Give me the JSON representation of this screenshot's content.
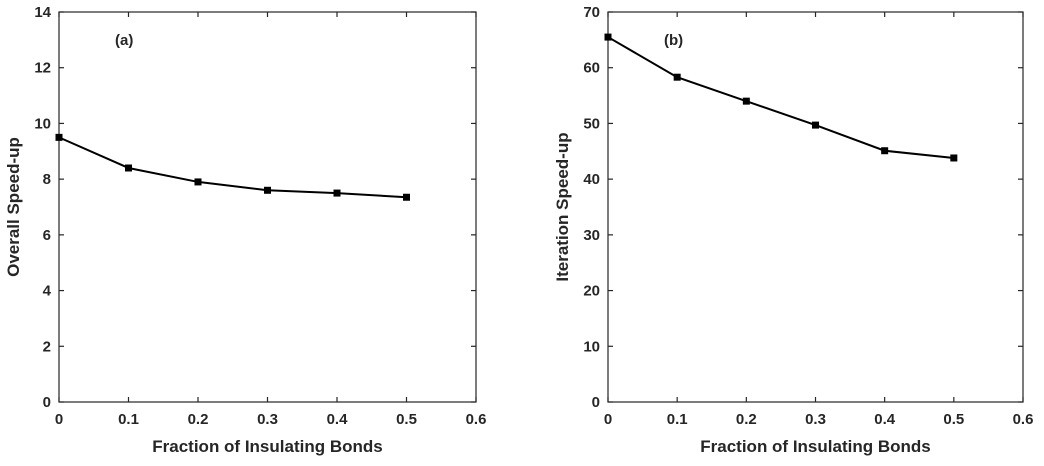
{
  "chart_data": [
    {
      "type": "line",
      "panel_label": "(a)",
      "xlabel": "Fraction of Insulating Bonds",
      "ylabel": "Overall Speed-up",
      "xlim": [
        0,
        0.6
      ],
      "ylim": [
        0,
        14
      ],
      "xticks": [
        0,
        0.1,
        0.2,
        0.3,
        0.4,
        0.5,
        0.6
      ],
      "xtick_labels": [
        "0",
        "0.1",
        "0.2",
        "0.3",
        "0.4",
        "0.5",
        "0.6"
      ],
      "yticks": [
        0,
        2,
        4,
        6,
        8,
        10,
        12,
        14
      ],
      "ytick_labels": [
        "0",
        "2",
        "4",
        "6",
        "8",
        "10",
        "12",
        "14"
      ],
      "grid": false,
      "x": [
        0,
        0.1,
        0.2,
        0.3,
        0.4,
        0.5
      ],
      "series": [
        {
          "values": [
            9.5,
            8.4,
            7.9,
            7.6,
            7.5,
            7.35
          ],
          "color": "#000000",
          "marker": "square"
        }
      ]
    },
    {
      "type": "line",
      "panel_label": "(b)",
      "xlabel": "Fraction of Insulating Bonds",
      "ylabel": "Iteration Speed-up",
      "xlim": [
        0,
        0.6
      ],
      "ylim": [
        0,
        70
      ],
      "xticks": [
        0,
        0.1,
        0.2,
        0.3,
        0.4,
        0.5,
        0.6
      ],
      "xtick_labels": [
        "0",
        "0.1",
        "0.2",
        "0.3",
        "0.4",
        "0.5",
        "0.6"
      ],
      "yticks": [
        0,
        10,
        20,
        30,
        40,
        50,
        60,
        70
      ],
      "ytick_labels": [
        "0",
        "10",
        "20",
        "30",
        "40",
        "50",
        "60",
        "70"
      ],
      "grid": false,
      "x": [
        0,
        0.1,
        0.2,
        0.3,
        0.4,
        0.5
      ],
      "series": [
        {
          "values": [
            65.5,
            58.3,
            54.0,
            49.7,
            45.1,
            43.8
          ],
          "color": "#000000",
          "marker": "square"
        }
      ]
    }
  ]
}
